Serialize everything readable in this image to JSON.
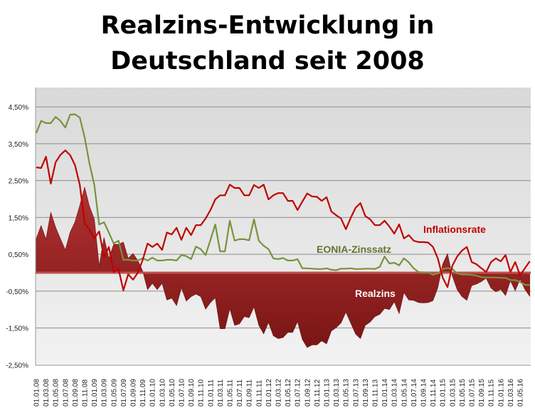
{
  "chart_data": {
    "type": "line",
    "title_lines": [
      "Realzins-Entwicklung in",
      "Deutschland seit 2008"
    ],
    "xlabel": "",
    "ylabel": "",
    "ylim": [
      -2.5,
      5.0
    ],
    "y_ticks": [
      "4,50%",
      "3,50%",
      "2,50%",
      "1,50%",
      "0,50%",
      "-0,50%",
      "-1,50%",
      "-2,50%"
    ],
    "y_tick_values": [
      4.5,
      3.5,
      2.5,
      1.5,
      0.5,
      -0.5,
      -1.5,
      -2.5
    ],
    "x_tick_labels": [
      "01.01.08",
      "01.03.08",
      "01.05.08",
      "01.07.08",
      "01.09.08",
      "01.11.08",
      "01.01.09",
      "01.03.09",
      "01.05.09",
      "01.07.09",
      "01.09.09",
      "01.11.09",
      "01.01.10",
      "01.03.10",
      "01.05.10",
      "01.07.10",
      "01.09.10",
      "01.11.10",
      "01.01.11",
      "01.03.11",
      "01.05.11",
      "01.07.11",
      "01.09.11",
      "01.11.11",
      "01.01.12",
      "01.03.12",
      "01.05.12",
      "01.07.12",
      "01.09.12",
      "01.11.12",
      "01.01.13",
      "01.03.13",
      "01.05.13",
      "01.07.13",
      "01.09.13",
      "01.11.13",
      "01.01.14",
      "01.03.14",
      "01.05.14",
      "01.07.14",
      "01.09.14",
      "01.11.14",
      "01.01.15",
      "01.03.15",
      "01.05.15",
      "01.07.15",
      "01.09.15",
      "01.11.15",
      "01.01.16",
      "01.03.16",
      "01.05.16"
    ],
    "x_start": "01.01.08",
    "x_step": "monthly",
    "grid": true,
    "series": [
      {
        "name": "Inflationsrate",
        "kind": "line",
        "color": "#c00000",
        "values": [
          2.86,
          2.84,
          3.15,
          2.42,
          3.0,
          3.2,
          3.32,
          3.19,
          2.92,
          2.38,
          1.35,
          1.16,
          0.93,
          1.12,
          0.41,
          0.7,
          0.02,
          0.1,
          -0.48,
          -0.04,
          -0.19,
          0.0,
          0.35,
          0.79,
          0.7,
          0.79,
          0.62,
          1.09,
          1.04,
          1.22,
          0.89,
          1.22,
          1.02,
          1.29,
          1.29,
          1.47,
          1.7,
          1.99,
          2.1,
          2.1,
          2.39,
          2.3,
          2.3,
          2.1,
          2.1,
          2.38,
          2.3,
          2.39,
          1.99,
          2.1,
          2.16,
          2.16,
          1.95,
          1.95,
          1.7,
          1.93,
          2.15,
          2.07,
          2.06,
          1.95,
          2.05,
          1.66,
          1.56,
          1.47,
          1.18,
          1.49,
          1.76,
          1.89,
          1.54,
          1.45,
          1.29,
          1.29,
          1.41,
          1.25,
          1.06,
          1.31,
          0.93,
          1.02,
          0.87,
          0.83,
          0.83,
          0.82,
          0.7,
          0.39,
          -0.13,
          -0.39,
          0.19,
          0.44,
          0.6,
          0.7,
          0.29,
          0.23,
          0.12,
          0.02,
          0.29,
          0.39,
          0.31,
          0.48,
          0.02,
          0.29,
          -0.07,
          0.12,
          0.31
        ]
      },
      {
        "name": "EONIA-Zinssatz",
        "kind": "line",
        "color": "#77933c",
        "values": [
          3.79,
          4.12,
          4.06,
          4.06,
          4.23,
          4.12,
          3.94,
          4.29,
          4.3,
          4.21,
          3.67,
          2.96,
          2.38,
          1.31,
          1.37,
          1.09,
          0.79,
          0.87,
          0.35,
          0.35,
          0.33,
          0.33,
          0.39,
          0.33,
          0.41,
          0.33,
          0.33,
          0.35,
          0.35,
          0.33,
          0.48,
          0.45,
          0.37,
          0.71,
          0.64,
          0.48,
          0.89,
          1.31,
          0.58,
          0.58,
          1.41,
          0.87,
          0.91,
          0.91,
          0.88,
          1.45,
          0.87,
          0.73,
          0.64,
          0.39,
          0.37,
          0.4,
          0.33,
          0.33,
          0.37,
          0.12,
          0.12,
          0.11,
          0.1,
          0.1,
          0.12,
          0.08,
          0.07,
          0.11,
          0.11,
          0.12,
          0.1,
          0.1,
          0.11,
          0.11,
          0.1,
          0.16,
          0.44,
          0.25,
          0.27,
          0.2,
          0.39,
          0.28,
          0.12,
          0.02,
          0.01,
          0.01,
          -0.06,
          -0.02,
          0.1,
          0.13,
          0.1,
          -0.02,
          -0.05,
          -0.05,
          -0.06,
          -0.08,
          -0.12,
          -0.13,
          -0.13,
          -0.13,
          -0.14,
          -0.14,
          -0.2,
          -0.2,
          -0.25,
          -0.33,
          -0.33
        ]
      },
      {
        "name": "Realzins",
        "kind": "area",
        "color": "#9b2424",
        "values": [
          0.93,
          1.28,
          0.91,
          1.64,
          1.23,
          0.92,
          0.62,
          1.1,
          1.38,
          1.83,
          2.32,
          1.8,
          1.45,
          0.19,
          0.96,
          0.39,
          0.77,
          0.77,
          0.83,
          0.39,
          0.52,
          0.33,
          0.04,
          -0.46,
          -0.29,
          -0.46,
          -0.29,
          -0.74,
          -0.69,
          -0.89,
          -0.41,
          -0.77,
          -0.65,
          -0.58,
          -0.65,
          -0.99,
          -0.81,
          -0.68,
          -1.52,
          -1.52,
          -0.98,
          -1.43,
          -1.39,
          -1.19,
          -1.22,
          -0.93,
          -1.43,
          -1.66,
          -1.35,
          -1.71,
          -1.79,
          -1.76,
          -1.62,
          -1.62,
          -1.33,
          -1.81,
          -2.03,
          -1.96,
          -1.96,
          -1.85,
          -1.93,
          -1.58,
          -1.49,
          -1.36,
          -1.07,
          -1.37,
          -1.66,
          -1.79,
          -1.43,
          -1.34,
          -1.19,
          -1.13,
          -0.97,
          -1.0,
          -0.79,
          -1.11,
          -0.54,
          -0.74,
          -0.75,
          -0.81,
          -0.82,
          -0.81,
          -0.76,
          -0.41,
          0.23,
          0.52,
          -0.09,
          -0.46,
          -0.65,
          -0.75,
          -0.35,
          -0.31,
          -0.24,
          -0.15,
          -0.42,
          -0.52,
          -0.45,
          -0.62,
          -0.22,
          -0.49,
          -0.18,
          -0.45,
          -0.64
        ]
      }
    ],
    "annotations": {
      "inflation": "Inflationsrate",
      "eonia": "EONIA-Zinssatz",
      "realzins": "Realzins"
    }
  }
}
